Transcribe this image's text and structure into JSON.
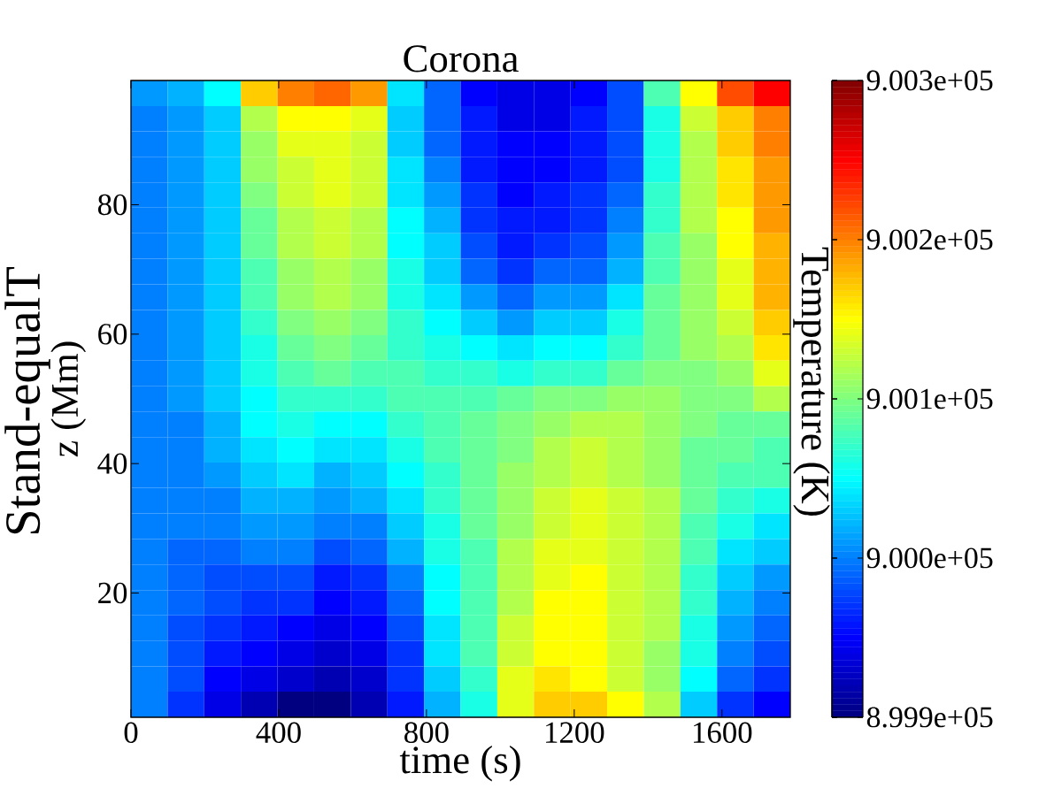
{
  "chart_data": {
    "type": "heatmap",
    "title": "Corona",
    "xlabel": "time (s)",
    "ylabel": "z (Mm)",
    "clabel": "Temperature (K)",
    "annotations": [
      "Stand-equalT"
    ],
    "x": [
      49.6,
      148.8,
      247.9,
      347.1,
      446.3,
      545.4,
      644.6,
      743.8,
      842.9,
      942.1,
      1041.3,
      1140.4,
      1239.6,
      1338.8,
      1437.9,
      1537.1,
      1636.3,
      1735.4
    ],
    "y": [
      97.2,
      93.3,
      89.4,
      85.4,
      81.5,
      77.6,
      73.6,
      69.7,
      65.7,
      61.8,
      57.9,
      53.9,
      50.0,
      46.1,
      42.1,
      38.2,
      34.3,
      30.3,
      26.4,
      22.4,
      18.5,
      14.6,
      10.6,
      6.7,
      2.8
    ],
    "xlim": [
      0,
      1785
    ],
    "ylim": [
      0.8,
      99.2
    ],
    "xticks": [
      0,
      400,
      800,
      1200,
      1600
    ],
    "yticks": [
      20,
      40,
      60,
      80
    ],
    "clim": [
      899900,
      900300
    ],
    "cticks": [
      {
        "value": 899900,
        "label": "8.999e+05"
      },
      {
        "value": 900000,
        "label": "9.000e+05"
      },
      {
        "value": 900100,
        "label": "9.001e+05"
      },
      {
        "value": 900200,
        "label": "9.002e+05"
      },
      {
        "value": 900300,
        "label": "9.003e+05"
      }
    ],
    "cells": [
      [
        900010,
        900020,
        900050,
        900170,
        900200,
        900210,
        900190,
        900040,
        899990,
        899950,
        899940,
        899940,
        899950,
        899980,
        900080,
        900150,
        900220,
        900250
      ],
      [
        900000,
        900010,
        900030,
        900120,
        900150,
        900150,
        900140,
        900030,
        899990,
        899960,
        899940,
        899940,
        899960,
        899980,
        900060,
        900130,
        900170,
        900200
      ],
      [
        900000,
        900010,
        900030,
        900110,
        900140,
        900140,
        900130,
        900030,
        899990,
        899960,
        899950,
        899950,
        899960,
        899980,
        900060,
        900120,
        900170,
        900200
      ],
      [
        900000,
        900010,
        900030,
        900110,
        900130,
        900140,
        900130,
        900040,
        900000,
        899960,
        899950,
        899950,
        899960,
        899980,
        900060,
        900120,
        900160,
        900190
      ],
      [
        900000,
        900010,
        900030,
        900100,
        900130,
        900140,
        900130,
        900040,
        900010,
        899970,
        899950,
        899960,
        899970,
        899990,
        900070,
        900120,
        900160,
        900190
      ],
      [
        900000,
        900010,
        900030,
        900090,
        900120,
        900130,
        900120,
        900050,
        900020,
        899970,
        899960,
        899960,
        899970,
        900000,
        900070,
        900120,
        900150,
        900190
      ],
      [
        900000,
        900010,
        900030,
        900090,
        900120,
        900130,
        900120,
        900050,
        900030,
        899980,
        899960,
        899970,
        899980,
        900010,
        900080,
        900110,
        900150,
        900180
      ],
      [
        900000,
        900010,
        900030,
        900080,
        900110,
        900120,
        900110,
        900060,
        900030,
        899990,
        899970,
        899990,
        899990,
        900020,
        900080,
        900110,
        900140,
        900180
      ],
      [
        900000,
        900010,
        900030,
        900080,
        900110,
        900120,
        900110,
        900060,
        900040,
        900010,
        899990,
        900010,
        900010,
        900040,
        900090,
        900110,
        900140,
        900180
      ],
      [
        900000,
        900010,
        900030,
        900070,
        900100,
        900110,
        900100,
        900070,
        900050,
        900030,
        900010,
        900030,
        900030,
        900060,
        900090,
        900110,
        900130,
        900170
      ],
      [
        900000,
        900010,
        900030,
        900060,
        900090,
        900100,
        900090,
        900070,
        900060,
        900050,
        900040,
        900050,
        900050,
        900070,
        900090,
        900110,
        900120,
        900160
      ],
      [
        900000,
        900010,
        900030,
        900060,
        900080,
        900090,
        900080,
        900080,
        900070,
        900070,
        900060,
        900070,
        900070,
        900090,
        900100,
        900100,
        900110,
        900140
      ],
      [
        900000,
        900010,
        900030,
        900050,
        900070,
        900070,
        900070,
        900080,
        900080,
        900080,
        900090,
        900100,
        900100,
        900110,
        900110,
        900100,
        900100,
        900120
      ],
      [
        900000,
        900000,
        900020,
        900050,
        900060,
        900050,
        900050,
        900070,
        900080,
        900090,
        900100,
        900110,
        900120,
        900120,
        900110,
        900100,
        900090,
        900090
      ],
      [
        900000,
        900000,
        900020,
        900040,
        900050,
        900040,
        900040,
        900060,
        900080,
        900090,
        900100,
        900120,
        900130,
        900120,
        900110,
        900090,
        900090,
        900080
      ],
      [
        900000,
        900000,
        900010,
        900030,
        900040,
        900020,
        900030,
        900050,
        900070,
        900090,
        900110,
        900120,
        900130,
        900120,
        900110,
        900090,
        900080,
        900080
      ],
      [
        900000,
        900000,
        900000,
        900020,
        900020,
        900010,
        900020,
        900040,
        900070,
        900090,
        900110,
        900130,
        900140,
        900130,
        900120,
        900090,
        900070,
        900060
      ],
      [
        900000,
        900000,
        900000,
        900010,
        900010,
        900000,
        900000,
        900030,
        900060,
        900090,
        900110,
        900130,
        900140,
        900130,
        900120,
        900080,
        900060,
        900040
      ],
      [
        900000,
        899990,
        899990,
        900000,
        900000,
        899980,
        899990,
        900020,
        900060,
        900080,
        900120,
        900140,
        900140,
        900130,
        900120,
        900080,
        900040,
        900030
      ],
      [
        900000,
        899990,
        899980,
        899980,
        899980,
        899960,
        899970,
        900000,
        900050,
        900080,
        900120,
        900140,
        900150,
        900130,
        900120,
        900070,
        900030,
        900010
      ],
      [
        900000,
        899990,
        899980,
        899970,
        899970,
        899950,
        899960,
        899990,
        900050,
        900080,
        900120,
        900150,
        900150,
        900130,
        900120,
        900070,
        900020,
        900000
      ],
      [
        900000,
        899980,
        899970,
        899960,
        899950,
        899940,
        899950,
        899980,
        900040,
        900080,
        900130,
        900150,
        900150,
        900130,
        900120,
        900060,
        900010,
        899990
      ],
      [
        900000,
        899980,
        899960,
        899950,
        899940,
        899930,
        899940,
        899970,
        900040,
        900080,
        900130,
        900150,
        900150,
        900130,
        900110,
        900060,
        900000,
        899980
      ],
      [
        900000,
        899980,
        899950,
        899940,
        899930,
        899920,
        899930,
        899970,
        900030,
        900070,
        900140,
        900160,
        900150,
        900130,
        900110,
        900050,
        899990,
        899970
      ],
      [
        900000,
        899970,
        899940,
        899920,
        899900,
        899900,
        899920,
        899960,
        900020,
        900060,
        900140,
        900170,
        900170,
        900150,
        900120,
        900030,
        899970,
        899950
      ]
    ]
  }
}
